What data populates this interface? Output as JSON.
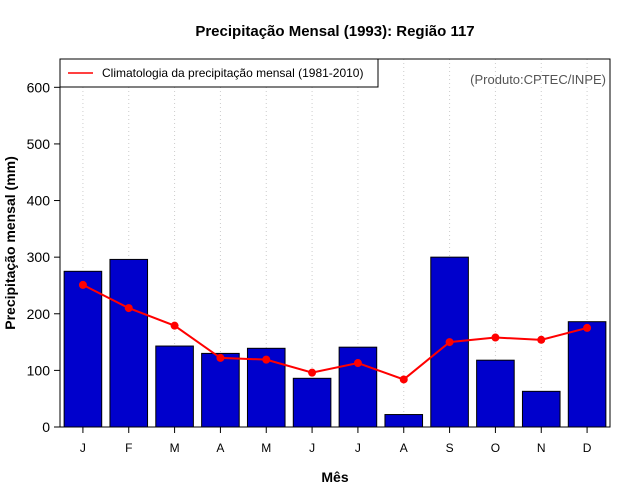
{
  "chart_data": {
    "type": "bar",
    "title": "Precipitação Mensal (1993): Região 117",
    "xlabel": "Mês",
    "ylabel": "Precipitação mensal (mm)",
    "ylim": [
      0,
      650
    ],
    "yticks": [
      0,
      100,
      200,
      300,
      400,
      500,
      600
    ],
    "categories": [
      "J",
      "F",
      "M",
      "A",
      "M",
      "J",
      "J",
      "A",
      "S",
      "O",
      "N",
      "D"
    ],
    "series": [
      {
        "name": "Precipitação mensal 1993",
        "type": "bar",
        "color": "#0000cc",
        "values": [
          275,
          296,
          143,
          130,
          139,
          86,
          141,
          22,
          300,
          118,
          63,
          186
        ]
      },
      {
        "name": "Climatologia da precipitação mensal (1981-2010)",
        "type": "line",
        "color": "#ff0000",
        "values": [
          251,
          210,
          179,
          122,
          119,
          96,
          113,
          84,
          150,
          158,
          154,
          175
        ]
      }
    ],
    "legend": {
      "label": "Climatologia da precipitação mensal (1981-2010)",
      "position": "top-left"
    },
    "credit": "(Produto:CPTEC/INPE)",
    "grid": "vertical-dotted"
  }
}
